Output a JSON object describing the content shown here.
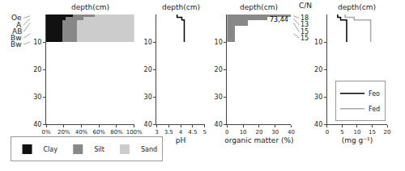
{
  "chart_data": [
    {
      "type": "bar",
      "orientation": "horizontal",
      "stacked": true,
      "title": "depth(cm)",
      "categories": [
        "Oe",
        "A",
        "AB",
        "Bw"
      ],
      "bins": [
        0,
        1,
        2,
        4,
        10
      ],
      "series": [
        {
          "name": "Clay",
          "color": "#111111",
          "values": [
            30,
            22,
            18,
            18
          ]
        },
        {
          "name": "Silt",
          "color": "#888888",
          "values": [
            25,
            20,
            17,
            17
          ]
        },
        {
          "name": "Sand",
          "color": "#cccccc",
          "values": [
            45,
            58,
            65,
            65
          ]
        }
      ],
      "xlim": [
        0,
        100
      ],
      "xticks": [
        {
          "value": 0,
          "label": "0%"
        },
        {
          "value": 20,
          "label": "20%"
        },
        {
          "value": 40,
          "label": "40%"
        },
        {
          "value": 60,
          "label": "60%"
        },
        {
          "value": 80,
          "label": "80%"
        },
        {
          "value": 100,
          "label": "100%"
        }
      ],
      "ylim": [
        40,
        0
      ],
      "yticks": [
        10,
        20,
        30,
        40
      ],
      "grid": false,
      "legend": "bottom",
      "annotations": [
        {
          "text": "Bw",
          "y": 10
        }
      ]
    },
    {
      "type": "step",
      "title": "depth(cm)",
      "xlabel": "pH",
      "bins": [
        0,
        1,
        2,
        4,
        10
      ],
      "values": [
        3.85,
        4.05,
        4.15,
        4.15
      ],
      "color": "#000000",
      "xlim": [
        3,
        5
      ],
      "xticks": [
        3,
        3.5,
        4,
        4.5,
        5
      ],
      "ylim": [
        40,
        0
      ],
      "yticks": [
        10,
        20,
        30,
        40
      ],
      "grid": false
    },
    {
      "type": "bar",
      "orientation": "horizontal",
      "title": "depth(cm)",
      "xlabel": "organic matter (%)",
      "bins": [
        0,
        1,
        2,
        4,
        10
      ],
      "series": [
        {
          "color": "#888888",
          "values": [
            40,
            25.0,
            13.0,
            5.0
          ]
        },
        {
          "name": "C/N",
          "type": "text",
          "values": [
            18,
            13,
            15,
            15
          ]
        }
      ],
      "xlim": [
        0,
        40
      ],
      "xticks": [
        0,
        10,
        20,
        30,
        40
      ],
      "ylim": [
        40,
        0
      ],
      "yticks": [
        10,
        20,
        30,
        40
      ],
      "grid": false,
      "annotations": [
        {
          "text": "73,44",
          "x": 39.5,
          "y": 0.05
        }
      ]
    },
    {
      "type": "step",
      "title": "depth(cm)",
      "xlabel": "(mg g⁻¹)",
      "bins": [
        0,
        1,
        2,
        4,
        10
      ],
      "series": [
        {
          "name": "Feo",
          "color": "#000000",
          "values": [
            3.5,
            4.5,
            6.5,
            6.5
          ]
        },
        {
          "name": "Fed",
          "color": "#aaaaaa",
          "values": [
            6.0,
            9.0,
            14.5,
            14.5
          ]
        }
      ],
      "xlim": [
        0,
        20
      ],
      "xticks": [
        0,
        5,
        10,
        15,
        20
      ],
      "ylim": [
        40,
        0
      ],
      "yticks": [
        10,
        20,
        30,
        40
      ],
      "grid": false,
      "legend": "lower right"
    }
  ]
}
